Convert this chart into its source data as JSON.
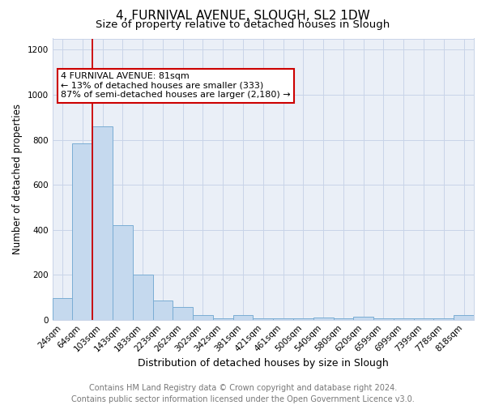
{
  "title_line1": "4, FURNIVAL AVENUE, SLOUGH, SL2 1DW",
  "title_line2": "Size of property relative to detached houses in Slough",
  "xlabel": "Distribution of detached houses by size in Slough",
  "ylabel": "Number of detached properties",
  "bar_labels": [
    "24sqm",
    "64sqm",
    "103sqm",
    "143sqm",
    "183sqm",
    "223sqm",
    "262sqm",
    "302sqm",
    "342sqm",
    "381sqm",
    "421sqm",
    "461sqm",
    "500sqm",
    "540sqm",
    "580sqm",
    "620sqm",
    "659sqm",
    "699sqm",
    "739sqm",
    "778sqm",
    "818sqm"
  ],
  "bar_values": [
    95,
    785,
    860,
    420,
    200,
    85,
    55,
    20,
    5,
    20,
    5,
    5,
    5,
    10,
    5,
    15,
    5,
    5,
    5,
    5,
    20
  ],
  "bar_color": "#c5d9ee",
  "bar_edge_color": "#7aadd4",
  "vline_color": "#cc0000",
  "annotation_text": "4 FURNIVAL AVENUE: 81sqm\n← 13% of detached houses are smaller (333)\n87% of semi-detached houses are larger (2,180) →",
  "annotation_box_color": "#ffffff",
  "annotation_border_color": "#cc0000",
  "ylim": [
    0,
    1250
  ],
  "yticks": [
    0,
    200,
    400,
    600,
    800,
    1000,
    1200
  ],
  "grid_color": "#c8d4e8",
  "bg_color": "#eaeff7",
  "footer_text": "Contains HM Land Registry data © Crown copyright and database right 2024.\nContains public sector information licensed under the Open Government Licence v3.0.",
  "title_fontsize": 11,
  "subtitle_fontsize": 9.5,
  "xlabel_fontsize": 9,
  "ylabel_fontsize": 8.5,
  "tick_fontsize": 7.5,
  "annotation_fontsize": 8,
  "footer_fontsize": 7
}
